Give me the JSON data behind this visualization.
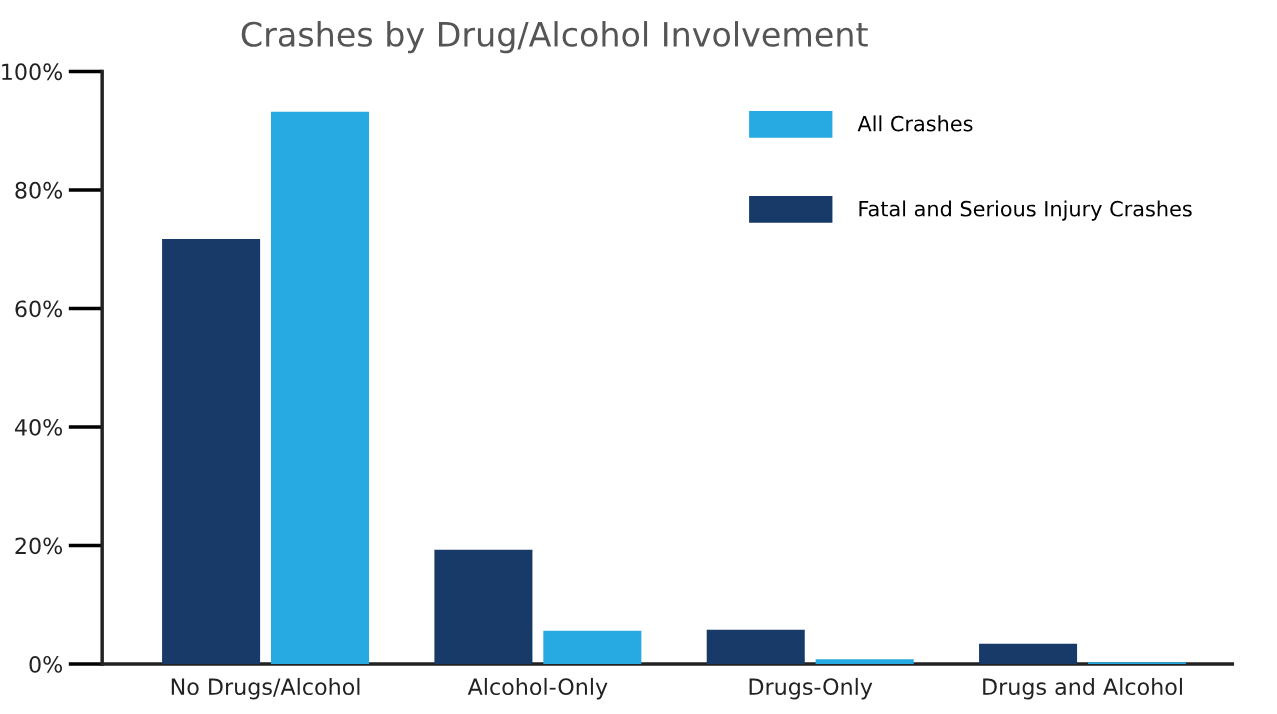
{
  "chart_data": {
    "type": "bar",
    "title": "Crashes by Drug/Alcohol Involvement",
    "categories": [
      "No Drugs/Alcohol",
      "Alcohol-Only",
      "Drugs-Only",
      "Drugs and Alcohol"
    ],
    "series": [
      {
        "name": "Fatal and Serious Injury Crashes",
        "color": "#173a69",
        "values": [
          71.7,
          19.3,
          5.8,
          3.4
        ]
      },
      {
        "name": "All Crashes",
        "color": "#27aae1",
        "values": [
          93.2,
          5.6,
          0.8,
          0.3
        ]
      }
    ],
    "ylim": [
      0,
      100
    ],
    "yticks": [
      {
        "value": 0,
        "label": "0%"
      },
      {
        "value": 20,
        "label": "20%"
      },
      {
        "value": 40,
        "label": "40%"
      },
      {
        "value": 60,
        "label": "60%"
      },
      {
        "value": 80,
        "label": "80%"
      },
      {
        "value": 100,
        "label": "100%"
      }
    ],
    "grid": false,
    "legend": "top right"
  }
}
